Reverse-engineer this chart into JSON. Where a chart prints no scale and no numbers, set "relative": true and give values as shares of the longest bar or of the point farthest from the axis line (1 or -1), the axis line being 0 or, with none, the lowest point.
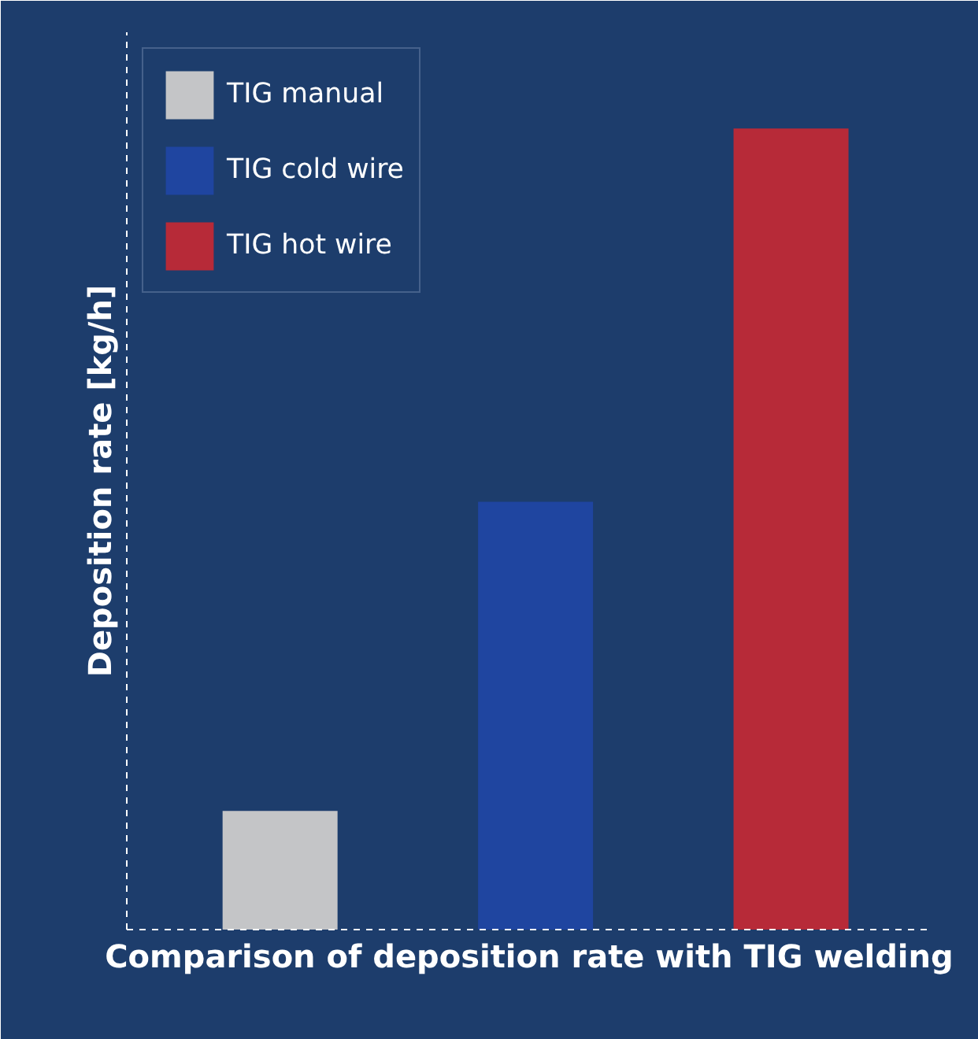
{
  "chart_data": {
    "type": "bar",
    "relative": true,
    "stacked": true,
    "xlabel": "Comparison of deposition rate with TIG welding",
    "ylabel": "Deposition rate [kg/h]",
    "categories": [
      null,
      null,
      null
    ],
    "series": [
      {
        "name": "TIG manual",
        "color": "#c4c5c7",
        "values": [
          0.148,
          null,
          null
        ]
      },
      {
        "name": "TIG cold wire",
        "color": "#1f45a0",
        "values": [
          null,
          0.534,
          null
        ]
      },
      {
        "name": "TIG hot wire",
        "color": "#b72a38",
        "values": [
          null,
          null,
          1
        ]
      }
    ],
    "legend": "top left",
    "tick_labels": false
  }
}
